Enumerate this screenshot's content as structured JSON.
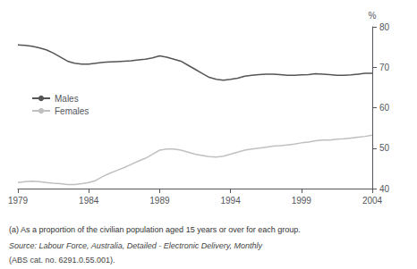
{
  "chart_data": {
    "type": "line",
    "x": [
      1979,
      1979.5,
      1980,
      1980.5,
      1981,
      1981.5,
      1982,
      1982.5,
      1983,
      1983.5,
      1984,
      1984.5,
      1985,
      1985.5,
      1986,
      1986.5,
      1987,
      1987.5,
      1988,
      1988.5,
      1989,
      1989.5,
      1990,
      1990.5,
      1991,
      1991.5,
      1992,
      1992.5,
      1993,
      1993.5,
      1994,
      1994.5,
      1995,
      1995.5,
      1996,
      1996.5,
      1997,
      1997.5,
      1998,
      1998.5,
      1999,
      1999.5,
      2000,
      2000.5,
      2001,
      2001.5,
      2002,
      2002.5,
      2003,
      2003.5,
      2004
    ],
    "series": [
      {
        "name": "Males",
        "color": "#555555",
        "values": [
          75.5,
          75.4,
          75.2,
          74.8,
          74.3,
          73.5,
          72.5,
          71.5,
          71.0,
          70.8,
          70.8,
          71.0,
          71.2,
          71.3,
          71.4,
          71.5,
          71.6,
          71.8,
          72.0,
          72.3,
          72.8,
          72.5,
          72.0,
          71.5,
          70.5,
          69.5,
          68.5,
          67.5,
          67.0,
          66.8,
          67.0,
          67.3,
          67.8,
          68.0,
          68.2,
          68.3,
          68.3,
          68.2,
          68.0,
          68.0,
          68.1,
          68.2,
          68.4,
          68.3,
          68.2,
          68.0,
          68.0,
          68.1,
          68.3,
          68.5,
          68.5
        ]
      },
      {
        "name": "Females",
        "color": "#c0c0c0",
        "values": [
          41.5,
          41.7,
          41.8,
          41.7,
          41.5,
          41.3,
          41.2,
          41.0,
          41.0,
          41.2,
          41.5,
          42.0,
          43.0,
          43.8,
          44.5,
          45.2,
          46.0,
          46.8,
          47.5,
          48.5,
          49.5,
          49.8,
          49.8,
          49.5,
          49.0,
          48.5,
          48.2,
          47.9,
          47.8,
          48.0,
          48.5,
          49.0,
          49.5,
          49.8,
          50.0,
          50.2,
          50.5,
          50.6,
          50.8,
          51.0,
          51.3,
          51.5,
          51.8,
          52.0,
          52.0,
          52.2,
          52.3,
          52.5,
          52.7,
          52.9,
          53.2
        ]
      }
    ],
    "xlim": [
      1979,
      2004
    ],
    "xticks": [
      1979,
      1984,
      1989,
      1994,
      1999,
      2004
    ],
    "ylim": [
      40,
      80
    ],
    "yticks": [
      40,
      50,
      60,
      70,
      80
    ],
    "ylabel": "%",
    "annotations": [
      "(a) As a proportion of the civilian population aged 15 years or over for each group.",
      "Source: Labour Force, Australia, Detailed - Electronic Delivery, Monthly",
      "(ABS cat. no. 6291.0.55.001)."
    ],
    "grid": false,
    "legend": "left"
  }
}
